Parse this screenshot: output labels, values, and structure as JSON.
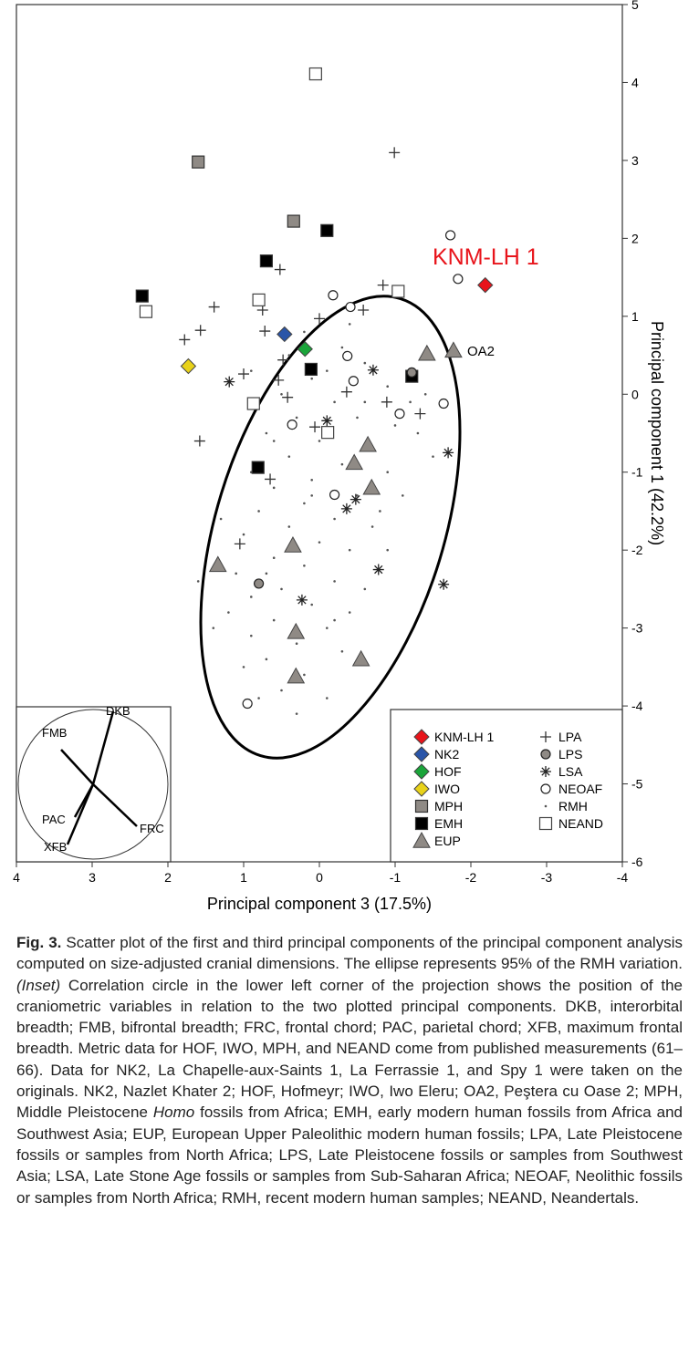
{
  "chart_data": {
    "type": "scatter",
    "xlabel": "Principal component 3 (17.5%)",
    "ylabel": "Principal component 1 (42.2%)",
    "xlim": [
      4,
      -4
    ],
    "ylim": [
      -6,
      5
    ],
    "xticks": [
      4,
      3,
      2,
      1,
      0,
      -1,
      -2,
      -3,
      -4
    ],
    "yticks": [
      5,
      4,
      3,
      2,
      1,
      0,
      -1,
      -2,
      -3,
      -4,
      -5,
      -6
    ],
    "legend": "lower right",
    "annotations": [
      "OA2"
    ],
    "inset_labels": [
      "DKB",
      "FMB",
      "PAC",
      "XFB",
      "FRC"
    ],
    "series": [
      {
        "name": "KNM-LH 1",
        "color": "#e8141b",
        "marker": "diamond",
        "x": [
          -2.19
        ],
        "values": [
          1.4
        ]
      },
      {
        "name": "NK2",
        "color": "#2a55a8",
        "marker": "diamond",
        "x": [
          0.46
        ],
        "values": [
          0.77
        ]
      },
      {
        "name": "HOF",
        "color": "#1aa53a",
        "marker": "diamond",
        "x": [
          0.19
        ],
        "values": [
          0.58
        ]
      },
      {
        "name": "IWO",
        "color": "#e8d21a",
        "marker": "diamond",
        "x": [
          1.73
        ],
        "values": [
          0.36
        ]
      },
      {
        "name": "MPH",
        "color": "#8f8a85",
        "marker": "square",
        "x": [
          1.6,
          0.34
        ],
        "values": [
          2.98,
          2.22
        ]
      },
      {
        "name": "EMH",
        "color": "#000000",
        "marker": "square",
        "x": [
          -0.1,
          0.7,
          2.34,
          0.11,
          -1.22,
          0.81
        ],
        "values": [
          2.1,
          1.71,
          1.26,
          0.32,
          0.23,
          -0.94
        ]
      },
      {
        "name": "EUP",
        "color": "#8f8a85",
        "marker": "triangle",
        "x": [
          -1.42,
          -1.77,
          -0.64,
          -0.46,
          -0.69,
          0.35,
          1.34,
          0.31,
          -0.55,
          0.31
        ],
        "values": [
          0.52,
          0.56,
          -0.65,
          -0.88,
          -1.2,
          -1.94,
          -2.19,
          -3.05,
          -3.4,
          -3.62
        ]
      },
      {
        "name": "LPA",
        "color": "#333333",
        "marker": "plus",
        "x": [
          -0.99,
          0.52,
          1.39,
          1.57,
          1.78,
          1.58,
          1.05,
          -0.84,
          -0.58,
          0.75,
          0.72,
          0,
          0.48,
          0.42,
          -0.36,
          -0.89,
          -1.33,
          0.65,
          0.06,
          0.54,
          1.0
        ],
        "values": [
          3.1,
          1.6,
          1.12,
          0.82,
          0.7,
          -0.6,
          -1.92,
          1.4,
          1.08,
          1.08,
          0.81,
          0.97,
          0.44,
          -0.04,
          0.03,
          -0.1,
          -0.25,
          -1.09,
          -0.42,
          0.18,
          0.26
        ]
      },
      {
        "name": "LPS",
        "color": "#8f8a85",
        "marker": "circle",
        "x": [
          0.8,
          -1.22
        ],
        "values": [
          -2.43,
          0.28
        ]
      },
      {
        "name": "LSA",
        "color": "#222222",
        "marker": "asterisk",
        "x": [
          1.19,
          -0.71,
          -1.7,
          -0.48,
          -0.36,
          0.23,
          -0.78,
          -1.64,
          -0.1
        ],
        "values": [
          0.16,
          0.31,
          -0.75,
          -1.35,
          -1.47,
          -2.64,
          -2.25,
          -2.44,
          -0.34
        ]
      },
      {
        "name": "NEOAF",
        "color": "#ffffff",
        "marker": "open-circle",
        "x": [
          -1.73,
          -1.83,
          -0.18,
          -0.41,
          -0.37,
          -0.45,
          -1.06,
          -1.64,
          0.36,
          -0.2,
          0.95
        ],
        "values": [
          2.04,
          1.48,
          1.27,
          1.12,
          0.49,
          0.17,
          -0.25,
          -0.12,
          -0.39,
          -1.29,
          -3.97
        ]
      },
      {
        "name": "RMH",
        "color": "#555555",
        "marker": "dot",
        "x": [
          0.2,
          -0.3,
          -0.6,
          0.1,
          -0.9,
          -1.2,
          0.5,
          -0.2,
          0.3,
          -0.5,
          -1.0,
          0.7,
          0.0,
          -0.7,
          0.4,
          -0.3,
          -1.3,
          0.9,
          0.1,
          -0.9,
          0.6,
          -0.5,
          0.2,
          -1.1,
          0.8,
          -0.2,
          0.4,
          -0.7,
          1.0,
          0.0,
          -0.4,
          0.6,
          -0.9,
          0.2,
          1.1,
          -0.2,
          0.5,
          -0.6,
          0.9,
          0.1,
          -0.4,
          1.2,
          0.6,
          -0.1,
          0.9,
          0.3,
          -0.3,
          0.7,
          1.0,
          0.2,
          0.5,
          -0.1,
          0.8,
          0.3,
          0.1,
          -0.6,
          0.4,
          -0.1,
          1.4,
          -1.5,
          0.6,
          -0.8,
          0.3,
          -0.2,
          0.7,
          1.3,
          1.6,
          -1.4,
          0.9,
          -0.4
        ],
        "values": [
          0.8,
          0.6,
          0.4,
          0.2,
          0.1,
          -0.1,
          0.0,
          -0.1,
          -0.3,
          -0.3,
          -0.4,
          -0.5,
          -0.6,
          -0.7,
          -0.8,
          -0.9,
          -0.5,
          -1.0,
          -1.1,
          -1.0,
          -1.2,
          -1.3,
          -1.4,
          -1.3,
          -1.5,
          -1.6,
          -1.7,
          -1.7,
          -1.8,
          -1.9,
          -2.0,
          -2.1,
          -2.0,
          -2.2,
          -2.3,
          -2.4,
          -2.5,
          -2.5,
          -2.6,
          -2.7,
          -2.8,
          -2.8,
          -2.9,
          -3.0,
          -3.1,
          -3.2,
          -3.3,
          -3.4,
          -3.5,
          -3.6,
          -3.8,
          -3.9,
          -3.9,
          -4.1,
          -1.3,
          -0.1,
          0.5,
          0.3,
          -3.0,
          -0.8,
          -0.6,
          -1.5,
          -2.0,
          -2.9,
          -2.3,
          -1.6,
          -2.4,
          0.0,
          0.3,
          0.9
        ]
      },
      {
        "name": "NEAND",
        "color": "#ffffff",
        "marker": "open-square",
        "x": [
          0.05,
          2.29,
          0.8,
          -1.04,
          0.87,
          -0.11
        ],
        "values": [
          4.11,
          1.06,
          1.21,
          1.32,
          -0.12,
          -0.49
        ]
      }
    ]
  },
  "caption": [
    "Fig. 3.",
    " Scatter plot of the first and third principal components of the principal component analysis computed on size-adjusted cranial dimensions. The ellipse represents 95% of the RMH variation. ",
    "(Inset)",
    " Correlation circle in the lower left corner of the projection shows the position of the craniometric variables in relation to the two plotted principal components. DKB, interorbital breadth; FMB, bifrontal breadth; FRC, frontal chord; PAC, parietal chord; XFB, maximum frontal breadth. Metric data for HOF, IWO, MPH, and NEAND come from published measurements (61–66). Data for NK2, La Chapelle-aux-Saints 1, La Ferrassie 1, and Spy 1 were taken on the originals. NK2, Nazlet Khater 2; HOF, Hofmeyr; IWO, Iwo Eleru; OA2, Peştera cu Oase 2; MPH, Middle Pleistocene ",
    "Homo",
    " fossils from Africa; EMH, early modern human fossils from Africa and Southwest Asia; EUP, European Upper Paleolithic modern human fossils; LPA, Late Pleistocene fossils or samples from North Africa; LPS, Late Pleistocene fossils or samples from Southwest Asia; LSA, Late Stone Age fossils or samples from Sub-Saharan Africa; NEOAF, Neolithic fossils or samples from North Africa; RMH, recent modern human samples; NEAND, Neandertals."
  ]
}
